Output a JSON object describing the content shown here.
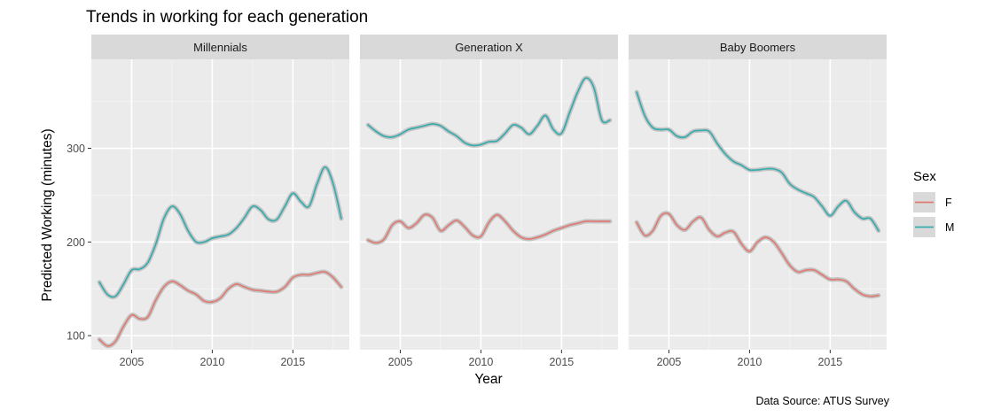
{
  "chart_data": {
    "type": "line",
    "title": "Trends in working for each generation",
    "xlabel": "Year",
    "ylabel": "Predicted Working (minutes)",
    "caption": "Data Source: ATUS Survey",
    "xlim": [
      2002.5,
      2018.5
    ],
    "ylim": [
      85,
      395
    ],
    "x_ticks": [
      2005,
      2010,
      2015
    ],
    "y_ticks": [
      100,
      200,
      300
    ],
    "grid": true,
    "legend": {
      "title": "Sex",
      "position": "right",
      "entries": [
        {
          "label": "F",
          "color": "#E07B73"
        },
        {
          "label": "M",
          "color": "#36ACAE"
        }
      ]
    },
    "facets": [
      {
        "name": "Millennials",
        "series": [
          {
            "name": "F",
            "x": [
              2003.0,
              2003.5,
              2004.0,
              2004.5,
              2005.0,
              2005.5,
              2006.0,
              2006.5,
              2007.0,
              2007.5,
              2008.0,
              2008.5,
              2009.0,
              2009.5,
              2010.0,
              2010.5,
              2011.0,
              2011.5,
              2012.0,
              2012.5,
              2013.0,
              2013.5,
              2014.0,
              2014.5,
              2015.0,
              2015.5,
              2016.0,
              2016.5,
              2017.0,
              2017.5,
              2018.0
            ],
            "y": [
              96,
              89,
              94,
              110,
              122,
              118,
              120,
              138,
              152,
              158,
              154,
              148,
              144,
              137,
              136,
              140,
              150,
              155,
              152,
              149,
              148,
              147,
              147,
              152,
              162,
              165,
              165,
              167,
              168,
              162,
              152
            ]
          },
          {
            "name": "M",
            "x": [
              2003.0,
              2003.5,
              2004.0,
              2004.5,
              2005.0,
              2005.5,
              2006.0,
              2006.5,
              2007.0,
              2007.5,
              2008.0,
              2008.5,
              2009.0,
              2009.5,
              2010.0,
              2010.5,
              2011.0,
              2011.5,
              2012.0,
              2012.5,
              2013.0,
              2013.5,
              2014.0,
              2014.5,
              2015.0,
              2015.5,
              2016.0,
              2016.5,
              2017.0,
              2017.5,
              2018.0
            ],
            "y": [
              157,
              144,
              142,
              155,
              170,
              171,
              178,
              198,
              225,
              238,
              230,
              212,
              200,
              200,
              204,
              206,
              208,
              215,
              226,
              238,
              234,
              224,
              224,
              238,
              252,
              243,
              238,
              262,
              280,
              262,
              225
            ]
          }
        ]
      },
      {
        "name": "Generation X",
        "series": [
          {
            "name": "F",
            "x": [
              2003.0,
              2003.5,
              2004.0,
              2004.5,
              2005.0,
              2005.5,
              2006.0,
              2006.5,
              2007.0,
              2007.5,
              2008.0,
              2008.5,
              2009.0,
              2009.5,
              2010.0,
              2010.5,
              2011.0,
              2011.5,
              2012.0,
              2012.5,
              2013.0,
              2013.5,
              2014.0,
              2014.5,
              2015.0,
              2015.5,
              2016.0,
              2016.5,
              2017.0,
              2017.5,
              2018.0
            ],
            "y": [
              202,
              199,
              203,
              218,
              222,
              215,
              220,
              229,
              226,
              212,
              218,
              223,
              216,
              207,
              206,
              221,
              229,
              222,
              212,
              205,
              203,
              205,
              208,
              212,
              215,
              218,
              220,
              222,
              222,
              222,
              222
            ]
          },
          {
            "name": "M",
            "x": [
              2003.0,
              2003.5,
              2004.0,
              2004.5,
              2005.0,
              2005.5,
              2006.0,
              2006.5,
              2007.0,
              2007.5,
              2008.0,
              2008.5,
              2009.0,
              2009.5,
              2010.0,
              2010.5,
              2011.0,
              2011.5,
              2012.0,
              2012.5,
              2013.0,
              2013.5,
              2014.0,
              2014.5,
              2015.0,
              2015.5,
              2016.0,
              2016.5,
              2017.0,
              2017.5,
              2018.0
            ],
            "y": [
              325,
              318,
              313,
              312,
              315,
              320,
              322,
              324,
              326,
              324,
              318,
              313,
              306,
              303,
              304,
              307,
              308,
              316,
              325,
              322,
              315,
              324,
              335,
              320,
              316,
              338,
              360,
              375,
              365,
              330,
              330
            ]
          }
        ]
      },
      {
        "name": "Baby Boomers",
        "series": [
          {
            "name": "F",
            "x": [
              2003.0,
              2003.5,
              2004.0,
              2004.5,
              2005.0,
              2005.5,
              2006.0,
              2006.5,
              2007.0,
              2007.5,
              2008.0,
              2008.5,
              2009.0,
              2009.5,
              2010.0,
              2010.5,
              2011.0,
              2011.5,
              2012.0,
              2012.5,
              2013.0,
              2013.5,
              2014.0,
              2014.5,
              2015.0,
              2015.5,
              2016.0,
              2016.5,
              2017.0,
              2017.5,
              2018.0
            ],
            "y": [
              221,
              207,
              212,
              228,
              230,
              218,
              213,
              222,
              226,
              213,
              206,
              210,
              211,
              198,
              190,
              200,
              205,
              200,
              188,
              175,
              168,
              170,
              170,
              165,
              160,
              160,
              158,
              150,
              144,
              142,
              143
            ]
          },
          {
            "name": "M",
            "x": [
              2003.0,
              2003.5,
              2004.0,
              2004.5,
              2005.0,
              2005.5,
              2006.0,
              2006.5,
              2007.0,
              2007.5,
              2008.0,
              2008.5,
              2009.0,
              2009.5,
              2010.0,
              2010.5,
              2011.0,
              2011.5,
              2012.0,
              2012.5,
              2013.0,
              2013.5,
              2014.0,
              2014.5,
              2015.0,
              2015.5,
              2016.0,
              2016.5,
              2017.0,
              2017.5,
              2018.0
            ],
            "y": [
              360,
              335,
              322,
              320,
              320,
              313,
              312,
              318,
              319,
              318,
              305,
              294,
              286,
              282,
              277,
              277,
              278,
              278,
              274,
              262,
              256,
              252,
              248,
              238,
              228,
              238,
              244,
              232,
              225,
              225,
              212
            ]
          }
        ]
      }
    ]
  }
}
